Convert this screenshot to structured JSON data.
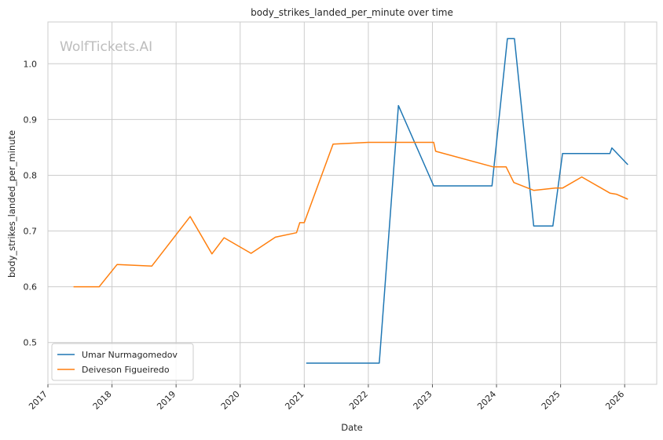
{
  "chart_data": {
    "type": "line",
    "title": "body_strikes_landed_per_minute over time",
    "xlabel": "Date",
    "ylabel": "body_strikes_landed_per_minute",
    "watermark": "WolfTickets.AI",
    "xlim": [
      2017.0,
      2026.5
    ],
    "ylim": [
      0.425,
      1.075
    ],
    "x_ticks": [
      2017,
      2018,
      2019,
      2020,
      2021,
      2022,
      2023,
      2024,
      2025,
      2026
    ],
    "x_tick_labels": [
      "2017",
      "2018",
      "2019",
      "2020",
      "2021",
      "2022",
      "2023",
      "2024",
      "2025",
      "2026"
    ],
    "y_ticks": [
      0.5,
      0.6,
      0.7,
      0.8,
      0.9,
      1.0
    ],
    "y_tick_labels": [
      "0.5",
      "0.6",
      "0.7",
      "0.8",
      "0.9",
      "1.0"
    ],
    "grid": true,
    "legend_position": "bottom-left",
    "colors": {
      "Umar Nurmagomedov": "#1f77b4",
      "Deiveson Figueiredo": "#ff7f0e",
      "grid": "#cccccc",
      "axes": "#cccccc"
    },
    "series": [
      {
        "name": "Umar Nurmagomedov",
        "x": [
          2021.03,
          2022.17,
          2022.47,
          2023.02,
          2023.93,
          2024.17,
          2024.28,
          2024.58,
          2024.88,
          2025.03,
          2025.77,
          2025.8,
          2026.05
        ],
        "y": [
          0.463,
          0.463,
          0.925,
          0.781,
          0.781,
          1.045,
          1.045,
          0.709,
          0.709,
          0.839,
          0.839,
          0.849,
          0.819
        ]
      },
      {
        "name": "Deiveson Figueiredo",
        "x": [
          2017.4,
          2017.8,
          2018.08,
          2018.62,
          2019.22,
          2019.56,
          2019.75,
          2020.17,
          2020.55,
          2020.88,
          2020.93,
          2021.0,
          2021.45,
          2022.0,
          2022.5,
          2023.02,
          2023.05,
          2023.95,
          2024.15,
          2024.27,
          2024.58,
          2024.92,
          2025.03,
          2025.33,
          2025.77,
          2025.87,
          2026.05
        ],
        "y": [
          0.6,
          0.6,
          0.64,
          0.637,
          0.726,
          0.659,
          0.688,
          0.66,
          0.689,
          0.697,
          0.715,
          0.715,
          0.856,
          0.859,
          0.859,
          0.859,
          0.843,
          0.815,
          0.815,
          0.787,
          0.773,
          0.777,
          0.777,
          0.797,
          0.768,
          0.766,
          0.757
        ]
      }
    ]
  }
}
